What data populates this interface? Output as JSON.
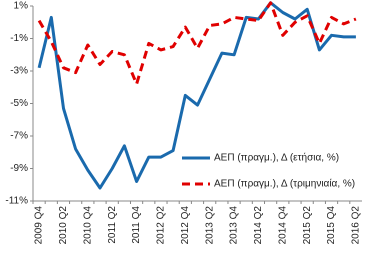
{
  "chart_data": {
    "type": "line",
    "categories": [
      "2009 Q4",
      null,
      "2010 Q2",
      null,
      "2010 Q4",
      null,
      "2011 Q2",
      null,
      "2011 Q4",
      null,
      "2012 Q2",
      null,
      "2012 Q4",
      null,
      "2013 Q2",
      null,
      "2013 Q4",
      null,
      "2014 Q2",
      null,
      "2014 Q4",
      null,
      "2015 Q2",
      null,
      "2015 Q4",
      null,
      "2016 Q2"
    ],
    "series": [
      {
        "name": "ΑΕΠ (πραγμ.), Δ (ετήσια, %)",
        "color": "#1a6aad",
        "dash": false,
        "values": [
          -2.8,
          0.3,
          -5.3,
          -7.8,
          -9.1,
          -10.2,
          -9.0,
          -7.6,
          -9.8,
          -8.3,
          -8.3,
          -7.9,
          -4.5,
          -5.1,
          -3.5,
          -1.9,
          -2.0,
          0.3,
          0.2,
          1.2,
          0.6,
          0.2,
          0.8,
          -1.7,
          -0.8,
          -0.9,
          -0.9
        ]
      },
      {
        "name": "ΑΕΠ (πραγμ.), Δ (τριμηνιαία, %)",
        "color": "#e00000",
        "dash": true,
        "values": [
          0.1,
          -1.2,
          -2.8,
          -3.1,
          -1.4,
          -2.6,
          -1.8,
          -2.0,
          -3.8,
          -1.3,
          -1.7,
          -1.5,
          -0.3,
          -1.6,
          -0.2,
          -0.1,
          0.3,
          0.2,
          0.1,
          1.2,
          -0.8,
          0.0,
          0.4,
          -1.3,
          0.3,
          -0.1,
          0.2
        ]
      }
    ],
    "ylim": [
      -11,
      1
    ],
    "yticks": [
      {
        "value": -11,
        "label": "-11%"
      },
      {
        "value": -9,
        "label": "-9%"
      },
      {
        "value": -7,
        "label": "-7%"
      },
      {
        "value": -5,
        "label": "-5%"
      },
      {
        "value": -3,
        "label": "-3%"
      },
      {
        "value": -1,
        "label": "-1%"
      },
      {
        "value": 1,
        "label": "1%"
      }
    ],
    "grid": false,
    "legend": "lower right"
  }
}
